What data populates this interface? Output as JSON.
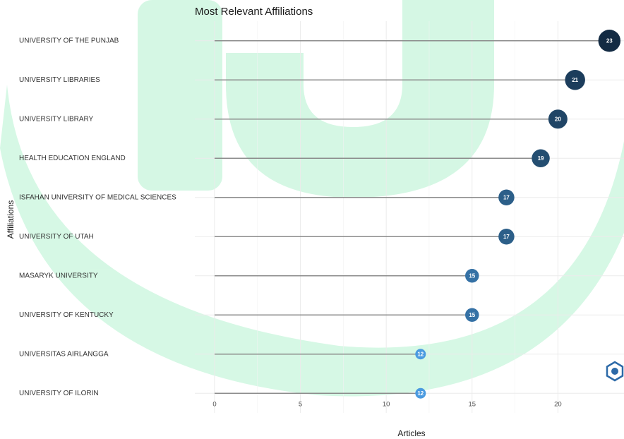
{
  "chart_data": {
    "type": "lollipop",
    "title": "Most Relevant Affiliations",
    "x_label": "Articles",
    "y_label": "Affiliations",
    "categories": [
      "UNIVERSITY OF THE PUNJAB",
      "UNIVERSITY LIBRARIES",
      "UNIVERSITY LIBRARY",
      "HEALTH EDUCATION ENGLAND",
      "ISFAHAN UNIVERSITY OF MEDICAL SCIENCES",
      "UNIVERSITY OF UTAH",
      "MASARYK UNIVERSITY",
      "UNIVERSITY OF KENTUCKY",
      "UNIVERSITAS AIRLANGGA",
      "UNIVERSITY OF ILORIN"
    ],
    "values": [
      23,
      21,
      20,
      19,
      17,
      17,
      15,
      15,
      12,
      12
    ],
    "colors": [
      "#132b43",
      "#1c3d5c",
      "#204566",
      "#244e71",
      "#2c5f89",
      "#2c5f89",
      "#3571a5",
      "#3571a5",
      "#4a9ae0",
      "#4a9ae0"
    ],
    "xlim": [
      -1.15,
      23.85
    ],
    "xticks": [
      0,
      5,
      10,
      15,
      20
    ],
    "grid": true
  }
}
